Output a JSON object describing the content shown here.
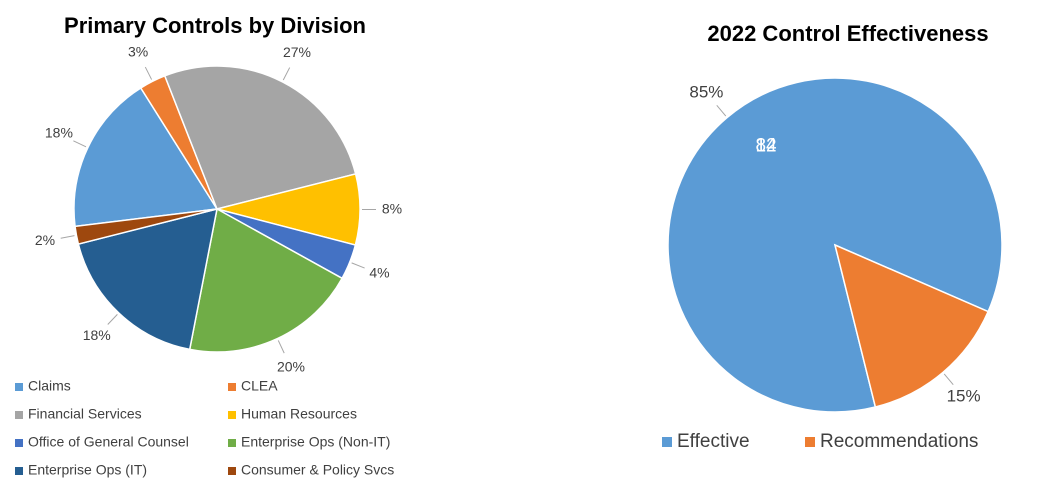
{
  "chart_data": [
    {
      "type": "pie",
      "title": "Primary Controls by Division",
      "categories": [
        "Claims",
        "CLEA",
        "Financial Services",
        "Human Resources",
        "Office of General Counsel",
        "Enterprise Ops (Non-IT)",
        "Enterprise Ops (IT)",
        "Consumer & Policy Svcs"
      ],
      "values": [
        18,
        3,
        27,
        8,
        4,
        20,
        18,
        2
      ],
      "value_labels": [
        "18%",
        "3%",
        "27%",
        "8%",
        "4%",
        "20%",
        "18%",
        "2%"
      ],
      "colors": [
        "#5b9bd5",
        "#ed7d31",
        "#a5a5a5",
        "#ffc000",
        "#4472c4",
        "#70ad47",
        "#255e91",
        "#9e480e"
      ],
      "legend": "bottom"
    },
    {
      "type": "pie",
      "title": "2022 Control Effectiveness",
      "categories": [
        "Effective",
        "Recommendations"
      ],
      "values": [
        82,
        14
      ],
      "percents": [
        85,
        15
      ],
      "percent_labels": [
        "85%",
        "15%"
      ],
      "colors": [
        "#5b9bd5",
        "#ed7d31"
      ],
      "legend": "bottom"
    }
  ]
}
